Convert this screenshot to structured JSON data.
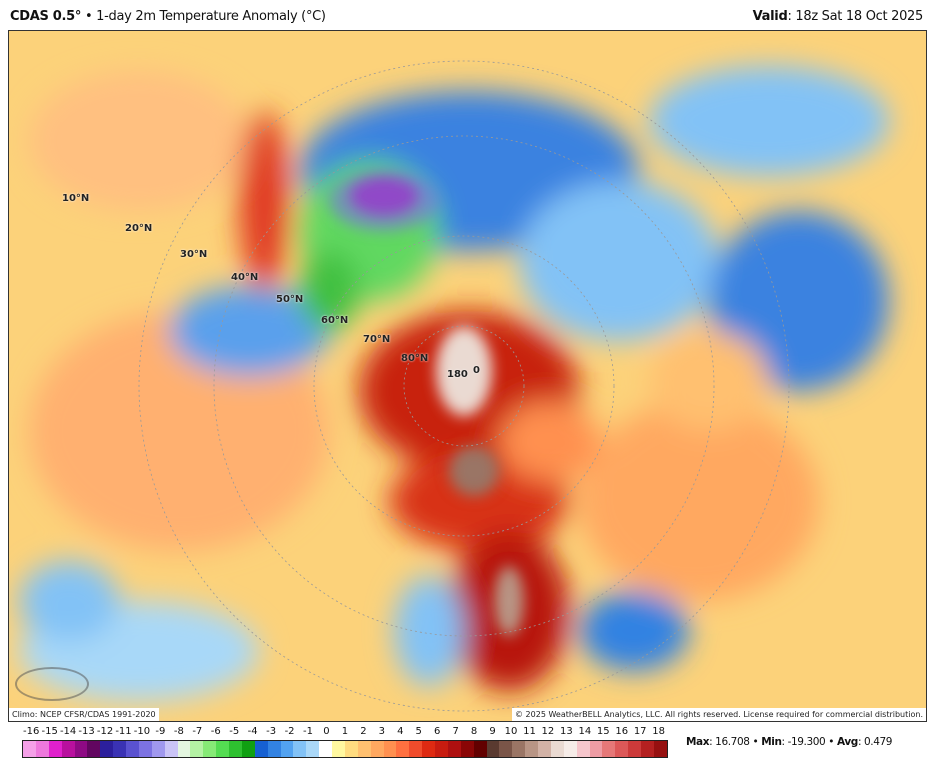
{
  "header": {
    "model": "CDAS 0.5",
    "degree": "°",
    "sep": " • ",
    "product": "1-day 2m Temperature Anomaly (°C)",
    "valid_label": "Valid",
    "valid_value": ": 18z Sat 18 Oct 2025"
  },
  "map": {
    "lat_labels": [
      "10°N",
      "20°N",
      "30°N",
      "40°N",
      "50°N",
      "60°N",
      "70°N",
      "80°N"
    ],
    "center_labels": [
      "180",
      "0"
    ],
    "logo": "WeatherBELL"
  },
  "footer": {
    "climo": "Climo: NCEP CFSR/CDAS 1991-2020",
    "copyright": "© 2025 WeatherBELL Analytics, LLC. All rights reserved. License required for commercial distribution."
  },
  "colorbar": {
    "ticks": [
      "-16",
      "-15",
      "-14",
      "-13",
      "-12",
      "-11",
      "-10",
      "-9",
      "-8",
      "-7",
      "-6",
      "-5",
      "-4",
      "-3",
      "-2",
      "-1",
      "0",
      "1",
      "2",
      "3",
      "4",
      "5",
      "6",
      "7",
      "8",
      "9",
      "10",
      "11",
      "12",
      "13",
      "14",
      "15",
      "16",
      "17",
      "18"
    ],
    "colors": [
      "#f5a0e8",
      "#ee78dc",
      "#e020cc",
      "#b8109e",
      "#8e0a84",
      "#620660",
      "#2c1f9c",
      "#3a32b4",
      "#5a52d0",
      "#7c72e2",
      "#a098ee",
      "#cac4f6",
      "#e4f6e0",
      "#b4f2a4",
      "#86ea76",
      "#54dc52",
      "#2ec030",
      "#10a012",
      "#1660d2",
      "#3282e2",
      "#52a2f0",
      "#82c2f6",
      "#aad8f8",
      "#ffffff",
      "#fff8a0",
      "#ffdc80",
      "#ffc070",
      "#ffa860",
      "#ff9050",
      "#ff7040",
      "#f04c2c",
      "#de2a12",
      "#c81c10",
      "#ae1010",
      "#8a0606",
      "#620000",
      "#5a3a30",
      "#7a5548",
      "#9a7565",
      "#b89585",
      "#d2b2a6",
      "#eadad2",
      "#f6ece8",
      "#f6c6cc",
      "#ee9ca4",
      "#e67878",
      "#dc5858",
      "#cc3a3a",
      "#b42020",
      "#961010"
    ]
  },
  "stats": {
    "max_label": "Max",
    "max": ": 16.708",
    "min_label": "Min",
    "min": ": -19.300",
    "avg_label": "Avg",
    "avg": ": 0.479",
    "sep": " • "
  }
}
